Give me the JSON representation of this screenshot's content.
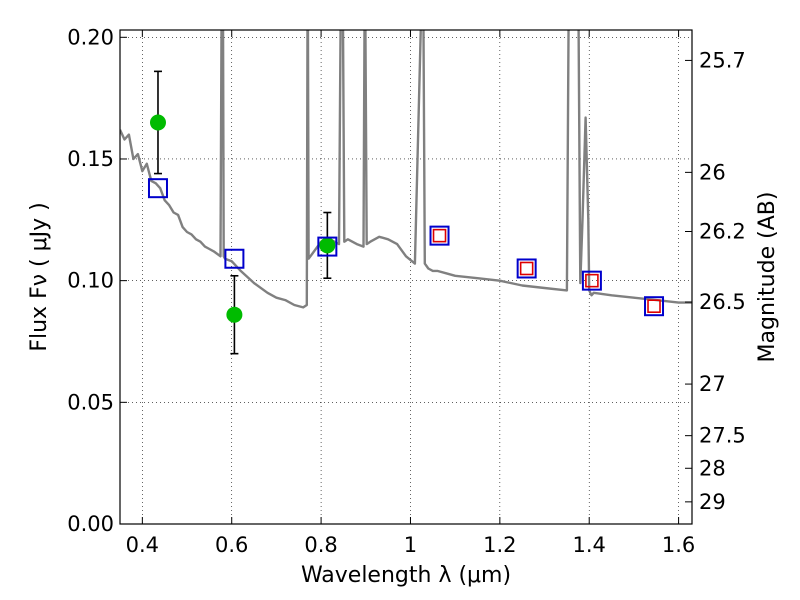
{
  "chart_data": {
    "type": "scatter",
    "xlabel": "Wavelength  λ (μm)",
    "ylabel": "Flux  Fν  ( μJy )",
    "ylabel_right": "Magnitude (AB)",
    "xlim": [
      0.35,
      1.63
    ],
    "ylim": [
      0.0,
      0.203
    ],
    "grid": true,
    "x_ticks": [
      0.4,
      0.6,
      0.8,
      1.0,
      1.2,
      1.4,
      1.6
    ],
    "x_tick_labels": [
      "0.4",
      "0.6",
      "0.8",
      "1",
      "1.2",
      "1.4",
      "1.6"
    ],
    "y_ticks": [
      0.0,
      0.05,
      0.1,
      0.15,
      0.2
    ],
    "y_tick_labels": [
      "0.00",
      "0.05",
      "0.10",
      "0.15",
      "0.20"
    ],
    "right_ticks": [
      {
        "label": "25.7",
        "flux": 0.1905
      },
      {
        "label": "26",
        "flux": 0.1445
      },
      {
        "label": "26.2",
        "flux": 0.1202
      },
      {
        "label": "26.5",
        "flux": 0.0912
      },
      {
        "label": "27",
        "flux": 0.0575
      },
      {
        "label": "27.5",
        "flux": 0.0363
      },
      {
        "label": "28",
        "flux": 0.0229
      },
      {
        "label": "29",
        "flux": 0.0091
      }
    ],
    "series": [
      {
        "kind": "spectrum",
        "color": "#808080",
        "x": [
          0.35,
          0.36,
          0.37,
          0.38,
          0.39,
          0.4,
          0.41,
          0.42,
          0.43,
          0.44,
          0.45,
          0.46,
          0.47,
          0.48,
          0.49,
          0.5,
          0.51,
          0.52,
          0.53,
          0.54,
          0.55,
          0.56,
          0.575,
          0.578,
          0.58,
          0.582,
          0.585,
          0.6,
          0.62,
          0.65,
          0.68,
          0.7,
          0.72,
          0.74,
          0.76,
          0.768,
          0.77,
          0.772,
          0.78,
          0.8,
          0.82,
          0.84,
          0.845,
          0.848,
          0.852,
          0.86,
          0.88,
          0.895,
          0.898,
          0.902,
          0.91,
          0.93,
          0.95,
          0.97,
          0.99,
          1.01,
          1.028,
          1.032,
          1.04,
          1.05,
          1.06,
          1.08,
          1.1,
          1.15,
          1.2,
          1.25,
          1.3,
          1.35,
          1.355,
          1.362,
          1.368,
          1.375,
          1.38,
          1.385,
          1.392,
          1.398,
          1.4,
          1.405,
          1.41,
          1.45,
          1.5,
          1.55,
          1.6,
          1.63
        ],
        "y": [
          0.162,
          0.158,
          0.16,
          0.15,
          0.152,
          0.145,
          0.148,
          0.141,
          0.14,
          0.138,
          0.133,
          0.131,
          0.128,
          0.127,
          0.122,
          0.12,
          0.119,
          0.117,
          0.116,
          0.114,
          0.113,
          0.112,
          0.11,
          0.24,
          0.24,
          0.11,
          0.109,
          0.108,
          0.104,
          0.099,
          0.095,
          0.093,
          0.092,
          0.09,
          0.089,
          0.09,
          0.24,
          0.109,
          0.111,
          0.116,
          0.117,
          0.115,
          0.24,
          0.24,
          0.116,
          0.117,
          0.115,
          0.114,
          0.24,
          0.115,
          0.116,
          0.118,
          0.117,
          0.115,
          0.11,
          0.107,
          0.24,
          0.107,
          0.105,
          0.104,
          0.104,
          0.103,
          0.102,
          0.101,
          0.1,
          0.098,
          0.097,
          0.096,
          0.24,
          0.24,
          0.24,
          0.24,
          0.099,
          0.125,
          0.167,
          0.125,
          0.096,
          0.094,
          0.095,
          0.094,
          0.093,
          0.092,
          0.091,
          0.091
        ]
      },
      {
        "kind": "observed",
        "color": "#00bb00",
        "points": [
          {
            "x": 0.435,
            "y": 0.165,
            "err": 0.021
          },
          {
            "x": 0.606,
            "y": 0.086,
            "err": 0.016
          },
          {
            "x": 0.814,
            "y": 0.1145,
            "err": 0.0135
          }
        ]
      },
      {
        "kind": "model-photometry",
        "color": "#0000cc",
        "points": [
          {
            "x": 0.435,
            "y": 0.138
          },
          {
            "x": 0.606,
            "y": 0.109
          },
          {
            "x": 0.814,
            "y": 0.114
          },
          {
            "x": 1.065,
            "y": 0.1185
          },
          {
            "x": 1.26,
            "y": 0.105
          },
          {
            "x": 1.406,
            "y": 0.1
          },
          {
            "x": 1.545,
            "y": 0.0895
          }
        ]
      },
      {
        "kind": "model-photometry-inner",
        "color": "#dd0000",
        "points": [
          {
            "x": 1.065,
            "y": 0.1185
          },
          {
            "x": 1.26,
            "y": 0.105
          },
          {
            "x": 1.406,
            "y": 0.1
          },
          {
            "x": 1.545,
            "y": 0.0895
          }
        ]
      }
    ]
  }
}
